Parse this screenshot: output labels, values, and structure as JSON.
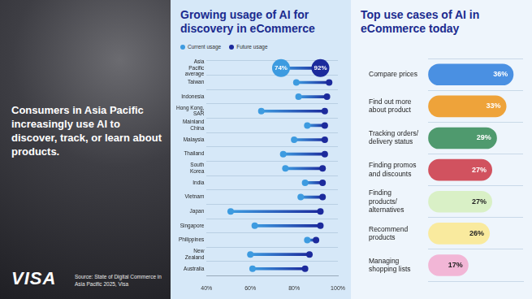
{
  "panel": {
    "headline": "Consumers in Asia Pacific increasingly use AI to discover, track, or learn about products.",
    "logo": "VISA",
    "source": "Source: State of Digital Commerce in Asia Pacific 2025, Visa"
  },
  "chart_data": [
    {
      "type": "dumbbell",
      "title": "Growing usage of AI for discovery in eCommerce",
      "orientation": "horizontal",
      "categories": [
        "Asia Pacific average",
        "Taiwan",
        "Indonesia",
        "Hong Kong, SAR",
        "Mainland China",
        "Malaysia",
        "Thailand",
        "South Korea",
        "India",
        "Vietnam",
        "Japan",
        "Singapore",
        "Philippines",
        "New Zealand",
        "Australia"
      ],
      "series": [
        {
          "name": "Current usage",
          "color": "#3d9be0",
          "values": [
            74,
            81,
            82,
            65,
            86,
            80,
            75,
            76,
            85,
            83,
            51,
            62,
            86,
            60,
            61
          ],
          "value_labels": [
            "74%",
            null,
            null,
            null,
            null,
            null,
            null,
            null,
            null,
            null,
            null,
            null,
            null,
            null,
            null
          ]
        },
        {
          "name": "Future usage",
          "color": "#1c2a9c",
          "values": [
            92,
            96,
            95,
            94,
            94,
            94,
            94,
            93,
            93,
            93,
            92,
            92,
            90,
            87,
            85
          ],
          "value_labels": [
            "92%",
            null,
            null,
            null,
            null,
            null,
            null,
            null,
            null,
            null,
            null,
            null,
            null,
            null,
            null
          ]
        }
      ],
      "xlim": [
        40,
        100
      ],
      "xticks": [
        {
          "value": 40,
          "label": "40%"
        },
        {
          "value": 60,
          "label": "60%"
        },
        {
          "value": 80,
          "label": "80%"
        },
        {
          "value": 100,
          "label": "100%"
        }
      ],
      "grid": true,
      "legend": "top-left"
    },
    {
      "type": "bar",
      "title": "Top use cases of AI in eCommerce today",
      "orientation": "horizontal",
      "categories": [
        "Compare prices",
        "Find out more about product",
        "Tracking orders/delivery status",
        "Finding promos and discounts",
        "Finding products/alternatives",
        "Recommend products",
        "Managing shopping lists"
      ],
      "values": [
        36,
        33,
        29,
        27,
        27,
        26,
        17
      ],
      "value_labels": [
        "36%",
        "33%",
        "29%",
        "27%",
        "27%",
        "26%",
        "17%"
      ],
      "colors": [
        "#4a90e2",
        "#eea33a",
        "#4f9a6e",
        "#d1525f",
        "#d9f0c6",
        "#f9ea9e",
        "#f2b6d6"
      ],
      "xlim": [
        0,
        40
      ],
      "data_labels": true,
      "tick_labels": "y",
      "grid": true
    }
  ]
}
